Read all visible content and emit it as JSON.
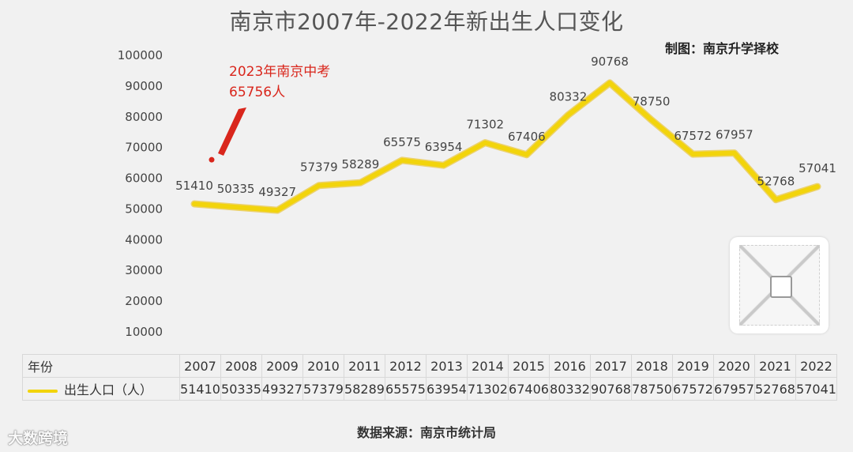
{
  "title": "南京市2007年-2022年新出生人口变化",
  "credit": "制图：南京升学择校",
  "source": "数据来源：南京市统计局",
  "watermark_logo": "大数跨境",
  "colors": {
    "line": "#f2d40c",
    "line_edge": "#e8b800",
    "annotation": "#d9261c",
    "grid": "#dcdcdc"
  },
  "annotation": {
    "line1": "2023年南京中考",
    "line2": "65756人",
    "value": 65756
  },
  "table": {
    "header_label": "年份",
    "series_label": "出生人口（人）"
  },
  "chart_data": {
    "type": "line",
    "title": "南京市2007年-2022年新出生人口变化",
    "categories": [
      "2007",
      "2008",
      "2009",
      "2010",
      "2011",
      "2012",
      "2013",
      "2014",
      "2015",
      "2016",
      "2017",
      "2018",
      "2019",
      "2020",
      "2021",
      "2022"
    ],
    "series": [
      {
        "name": "出生人口（人）",
        "values": [
          51410,
          50335,
          49327,
          57379,
          58289,
          65575,
          63954,
          71302,
          67406,
          80332,
          90768,
          78750,
          67572,
          67957,
          52768,
          57041
        ]
      }
    ],
    "yticks": [
      10000,
      20000,
      30000,
      40000,
      50000,
      60000,
      70000,
      80000,
      90000,
      100000
    ],
    "ylim": [
      0,
      100000
    ],
    "grid": false,
    "legend": "table"
  }
}
